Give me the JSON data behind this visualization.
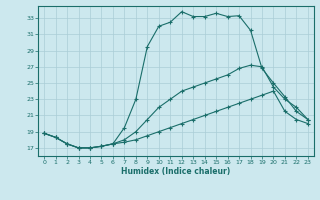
{
  "xlabel": "Humidex (Indice chaleur)",
  "background_color": "#cce8ee",
  "grid_color": "#aacdd6",
  "line_color": "#1a6e6a",
  "xlim": [
    -0.5,
    23.5
  ],
  "ylim": [
    16.0,
    34.5
  ],
  "yticks": [
    17,
    19,
    21,
    23,
    25,
    27,
    29,
    31,
    33
  ],
  "xticks": [
    0,
    1,
    2,
    3,
    4,
    5,
    6,
    7,
    8,
    9,
    10,
    11,
    12,
    13,
    14,
    15,
    16,
    17,
    18,
    19,
    20,
    21,
    22,
    23
  ],
  "series1_x": [
    0,
    1,
    2,
    3,
    4,
    5,
    6,
    7,
    8,
    9,
    10,
    11,
    12,
    13,
    14,
    15,
    16,
    17,
    18,
    19,
    20,
    21,
    22,
    23
  ],
  "series1_y": [
    18.8,
    18.3,
    17.5,
    17.0,
    17.0,
    17.2,
    17.5,
    19.5,
    23.0,
    29.5,
    32.0,
    32.5,
    33.8,
    33.2,
    33.2,
    33.6,
    33.2,
    33.3,
    31.5,
    26.8,
    25.0,
    23.3,
    21.5,
    20.5
  ],
  "series2_x": [
    0,
    1,
    2,
    3,
    4,
    5,
    6,
    7,
    8,
    9,
    10,
    11,
    12,
    13,
    14,
    15,
    16,
    17,
    18,
    19,
    20,
    21,
    22,
    23
  ],
  "series2_y": [
    18.8,
    18.3,
    17.5,
    17.0,
    17.0,
    17.2,
    17.5,
    18.0,
    19.0,
    20.5,
    22.0,
    23.0,
    24.0,
    24.5,
    25.0,
    25.5,
    26.0,
    26.8,
    27.2,
    27.0,
    24.5,
    23.0,
    22.0,
    20.5
  ],
  "series3_x": [
    0,
    1,
    2,
    3,
    4,
    5,
    6,
    7,
    8,
    9,
    10,
    11,
    12,
    13,
    14,
    15,
    16,
    17,
    18,
    19,
    20,
    21,
    22,
    23
  ],
  "series3_y": [
    18.8,
    18.3,
    17.5,
    17.0,
    17.0,
    17.2,
    17.5,
    17.7,
    18.0,
    18.5,
    19.0,
    19.5,
    20.0,
    20.5,
    21.0,
    21.5,
    22.0,
    22.5,
    23.0,
    23.5,
    24.0,
    21.5,
    20.5,
    20.0
  ]
}
